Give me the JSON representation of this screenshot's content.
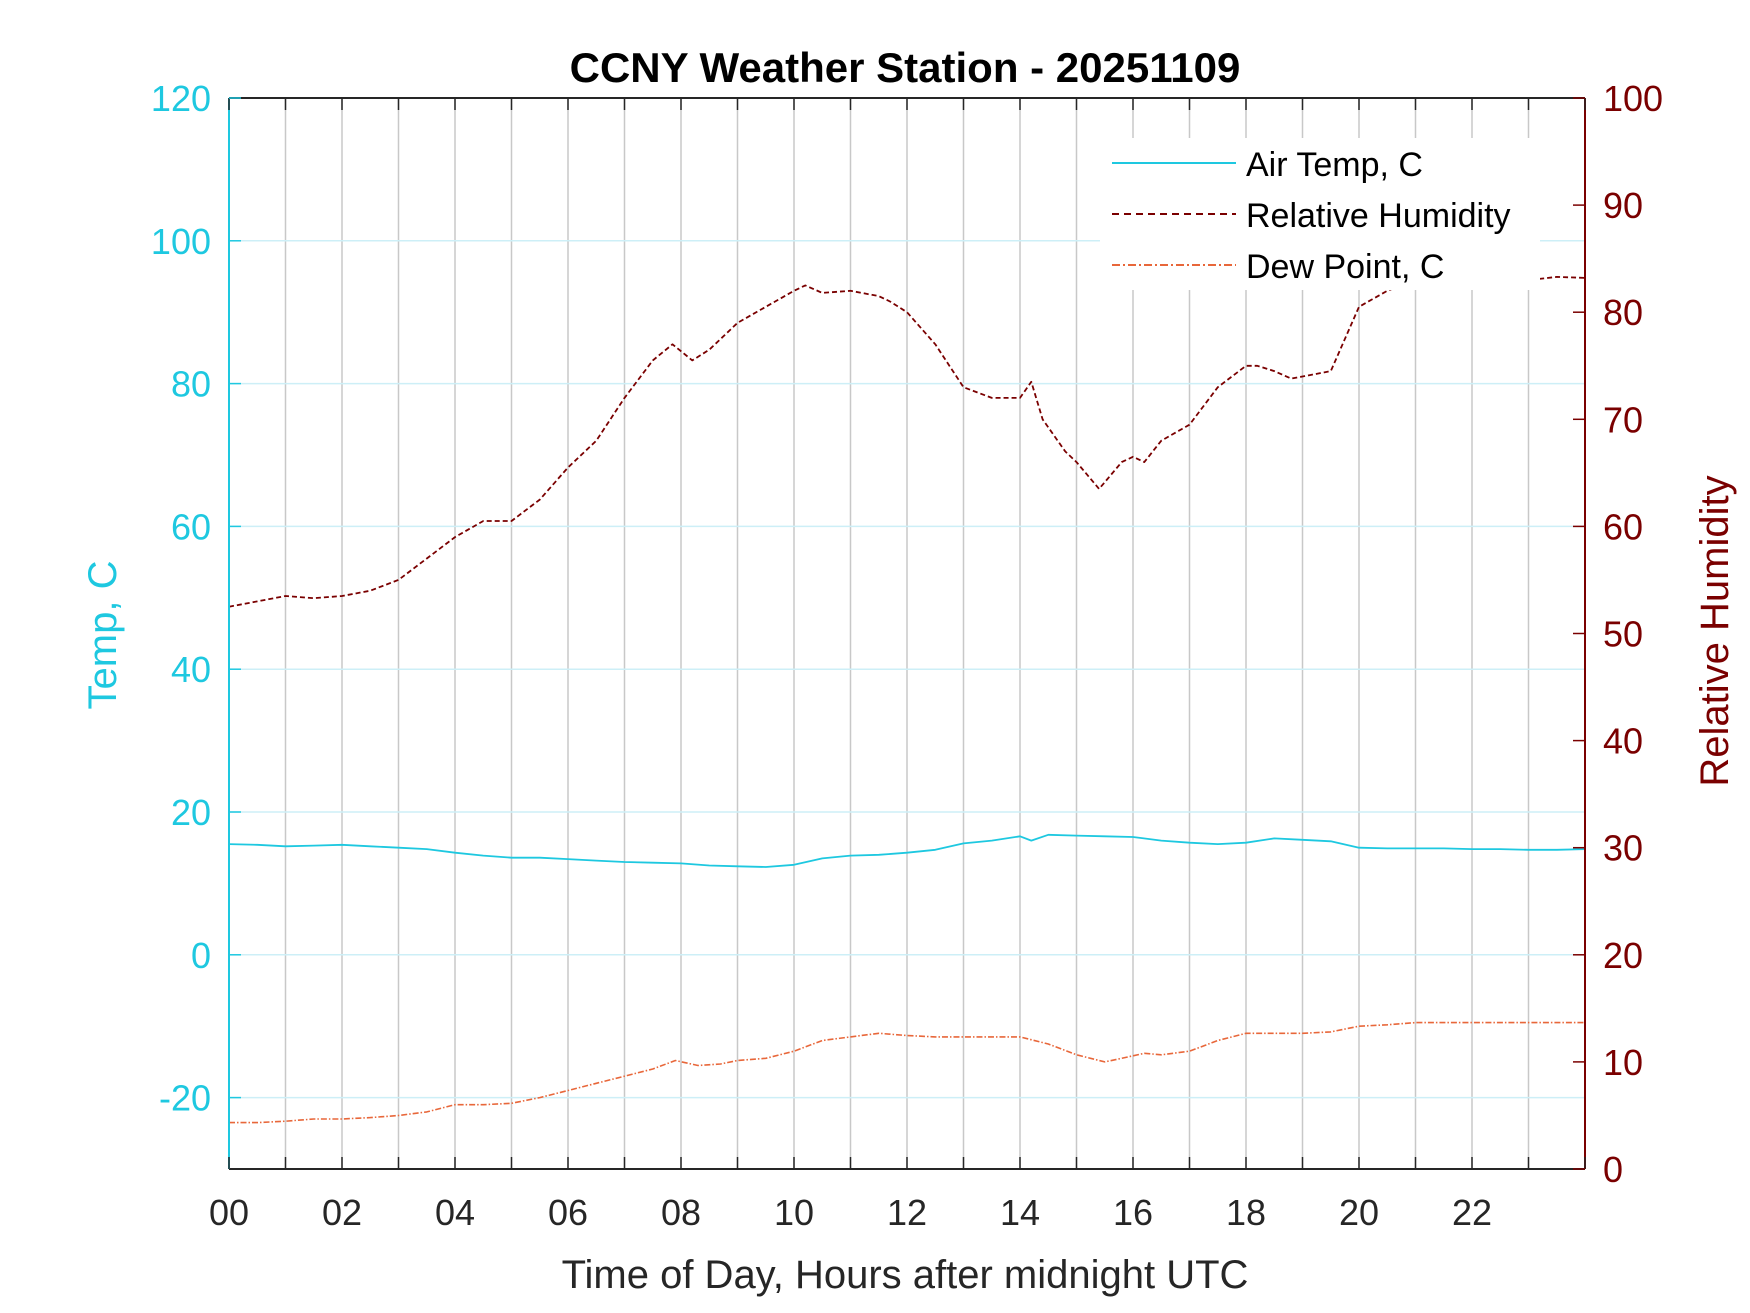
{
  "chart_data": {
    "type": "line",
    "title": "CCNY Weather Station - 20251109",
    "xlabel": "Time of Day, Hours after midnight UTC",
    "ylabel_left": "Temp, C",
    "ylabel_right": "Relative Humidity",
    "xlim": [
      0,
      24
    ],
    "ylim_left": [
      -30,
      120
    ],
    "ylim_right": [
      0,
      100
    ],
    "x_ticks": [
      0,
      2,
      4,
      6,
      8,
      10,
      12,
      14,
      16,
      18,
      20,
      22
    ],
    "x_tick_labels": [
      "00",
      "02",
      "04",
      "06",
      "08",
      "10",
      "12",
      "14",
      "16",
      "18",
      "20",
      "22"
    ],
    "y_left_ticks": [
      -20,
      0,
      20,
      40,
      60,
      80,
      100,
      120
    ],
    "y_left_tick_labels": [
      "-20",
      "0",
      "20",
      "40",
      "60",
      "80",
      "100",
      "120"
    ],
    "y_right_ticks": [
      0,
      10,
      20,
      30,
      40,
      50,
      60,
      70,
      80,
      90,
      100
    ],
    "y_right_tick_labels": [
      "0",
      "10",
      "20",
      "30",
      "40",
      "50",
      "60",
      "70",
      "80",
      "90",
      "100"
    ],
    "grid": true,
    "legend_position": "top-right",
    "colors": {
      "temp": "#1ec8e0",
      "rh": "#7a0000",
      "dew": "#e8673a",
      "left_axis": "#1ec8e0",
      "right_axis": "#7a0000",
      "grid_vertical": "#c8c8c8",
      "grid_horizontal": "#cdeff7"
    },
    "series": [
      {
        "name": "Air Temp, C",
        "axis": "left",
        "style": "solid",
        "x": [
          0,
          0.5,
          1,
          1.5,
          2,
          2.5,
          3,
          3.5,
          4,
          4.5,
          5,
          5.5,
          6,
          6.5,
          7,
          7.5,
          8,
          8.5,
          9,
          9.5,
          10,
          10.5,
          11,
          11.5,
          12,
          12.5,
          13,
          13.5,
          14,
          14.2,
          14.5,
          15,
          15.5,
          16,
          16.5,
          17,
          17.5,
          18,
          18.5,
          19,
          19.5,
          20,
          20.5,
          21,
          21.5,
          22,
          22.5,
          23,
          23.5,
          24
        ],
        "y": [
          15.5,
          15.4,
          15.2,
          15.3,
          15.4,
          15.2,
          15.0,
          14.8,
          14.3,
          13.9,
          13.6,
          13.6,
          13.4,
          13.2,
          13.0,
          12.9,
          12.8,
          12.5,
          12.4,
          12.3,
          12.6,
          13.5,
          13.9,
          14.0,
          14.3,
          14.7,
          15.6,
          16.0,
          16.6,
          16.0,
          16.8,
          16.7,
          16.6,
          16.5,
          16.0,
          15.7,
          15.5,
          15.7,
          16.3,
          16.1,
          15.9,
          15.0,
          14.9,
          14.9,
          14.9,
          14.8,
          14.8,
          14.7,
          14.7,
          14.8
        ]
      },
      {
        "name": "Relative Humidity",
        "axis": "right",
        "style": "dashed",
        "x": [
          0,
          0.5,
          1,
          1.5,
          2,
          2.5,
          3,
          3.5,
          4,
          4.5,
          5,
          5.5,
          6,
          6.5,
          7,
          7.5,
          7.85,
          8.2,
          8.5,
          9,
          9.5,
          10,
          10.2,
          10.5,
          11,
          11.5,
          11.7,
          12,
          12.5,
          13,
          13.5,
          14,
          14.2,
          14.4,
          14.8,
          15,
          15.4,
          15.8,
          16,
          16.2,
          16.5,
          17,
          17.5,
          18,
          18.2,
          18.5,
          18.8,
          19,
          19.5,
          20,
          20.5,
          21,
          21.5,
          22,
          22.5,
          23,
          23.5,
          24
        ],
        "y": [
          52.5,
          53.0,
          53.5,
          53.3,
          53.5,
          54.0,
          55.0,
          57.0,
          59.0,
          60.5,
          60.5,
          62.5,
          65.5,
          68.0,
          72.0,
          75.5,
          77.0,
          75.5,
          76.5,
          79.0,
          80.5,
          82.0,
          82.5,
          81.8,
          82.0,
          81.5,
          81.0,
          80.0,
          77.0,
          73.0,
          72.0,
          72.0,
          73.5,
          70.0,
          67.0,
          66.0,
          63.5,
          66.0,
          66.5,
          66.0,
          68.0,
          69.5,
          73.0,
          75.0,
          75.0,
          74.5,
          73.8,
          74.0,
          74.5,
          80.5,
          82.0,
          83.0,
          83.0,
          83.2,
          83.0,
          83.0,
          83.3,
          83.2
        ]
      },
      {
        "name": "Dew Point, C",
        "axis": "left",
        "style": "dash-dot",
        "x": [
          0,
          0.5,
          1,
          1.5,
          2,
          2.5,
          3,
          3.5,
          4,
          4.5,
          5,
          5.5,
          6,
          6.5,
          7,
          7.5,
          7.9,
          8.3,
          8.7,
          9,
          9.5,
          10,
          10.5,
          11,
          11.5,
          12,
          12.5,
          13,
          13.5,
          14,
          14.5,
          15,
          15.5,
          15.8,
          16.2,
          16.5,
          17,
          17.5,
          18,
          18.5,
          19,
          19.5,
          20,
          20.5,
          21,
          21.5,
          22,
          22.5,
          23,
          23.5,
          24
        ],
        "y": [
          -23.5,
          -23.5,
          -23.3,
          -23.0,
          -23.0,
          -22.8,
          -22.5,
          -22.0,
          -21.0,
          -21.0,
          -20.8,
          -20.0,
          -19.0,
          -18.0,
          -17.0,
          -16.0,
          -14.8,
          -15.5,
          -15.3,
          -14.8,
          -14.5,
          -13.5,
          -12.0,
          -11.5,
          -11.0,
          -11.3,
          -11.5,
          -11.5,
          -11.5,
          -11.5,
          -12.5,
          -14.0,
          -15.0,
          -14.5,
          -13.8,
          -14.0,
          -13.5,
          -12.0,
          -11.0,
          -11.0,
          -11.0,
          -10.8,
          -10.0,
          -9.8,
          -9.5,
          -9.5,
          -9.5,
          -9.5,
          -9.5,
          -9.5,
          -9.5
        ]
      }
    ]
  }
}
